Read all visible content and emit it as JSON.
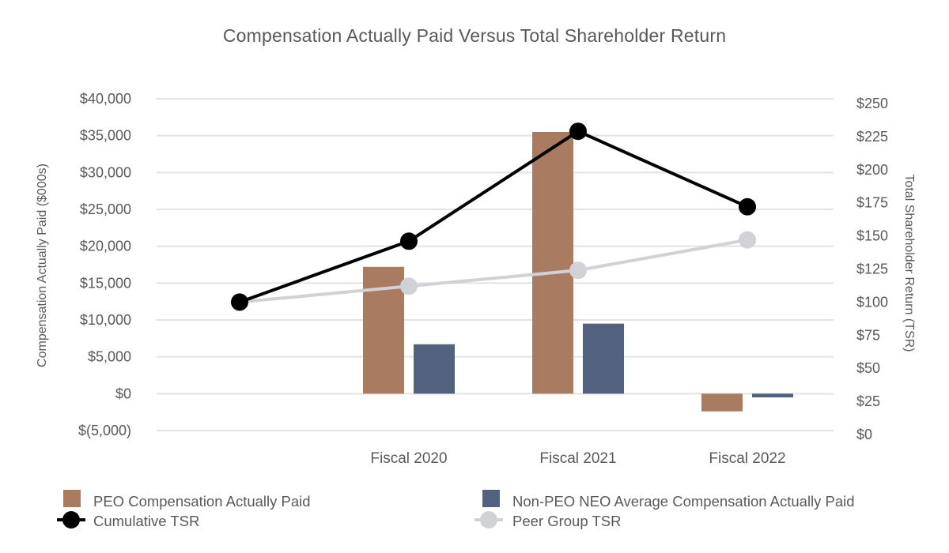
{
  "chart_data": {
    "type": "bar",
    "title": "Compensation Actually Paid Versus Total Shareholder Return",
    "ylabel_left": "Compensation Actually Paid ($000s)",
    "ylabel_right": "Total Shareholder Return (TSR)",
    "categories": [
      "",
      "Fiscal 2020",
      "Fiscal 2021",
      "Fiscal 2022"
    ],
    "left_axis": {
      "min": -5000,
      "max": 40000,
      "ticks": [
        40000,
        35000,
        30000,
        25000,
        20000,
        15000,
        10000,
        5000,
        0,
        -5000
      ],
      "tick_labels": [
        "$40,000",
        "$35,000",
        "$30,000",
        "$25,000",
        "$20,000",
        "$15,000",
        "$10,000",
        "$5,000",
        "$0",
        "$(5,000)"
      ]
    },
    "right_axis": {
      "min": 0,
      "max": 250,
      "ticks": [
        250,
        225,
        200,
        175,
        150,
        125,
        100,
        75,
        50,
        25,
        0
      ],
      "tick_labels": [
        "$250",
        "$225",
        "$200",
        "$175",
        "$150",
        "$125",
        "$100",
        "$75",
        "$50",
        "$25",
        "$0"
      ]
    },
    "grid": true,
    "bar_series": [
      {
        "name": "PEO Compensation Actually Paid",
        "color": "#a97c62",
        "values": [
          null,
          17200,
          35500,
          -2400
        ]
      },
      {
        "name": "Non-PEO NEO Average Compensation Actually Paid",
        "color": "#52617d",
        "values": [
          null,
          6700,
          9500,
          -500
        ]
      }
    ],
    "line_series": [
      {
        "name": "Cumulative TSR",
        "color": "#000000",
        "axis": "right",
        "values": [
          100,
          146,
          229,
          172
        ]
      },
      {
        "name": "Peer Group TSR",
        "color": "#d0d2d6",
        "axis": "right",
        "values": [
          100,
          112,
          124,
          147
        ]
      }
    ],
    "legend_position": "bottom"
  }
}
